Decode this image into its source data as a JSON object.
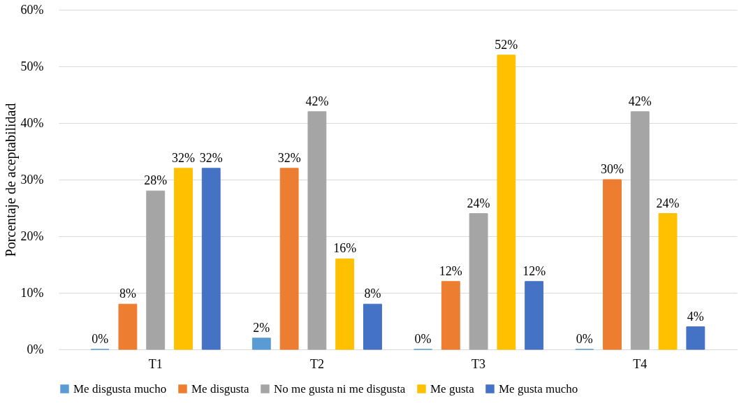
{
  "chart_data": {
    "type": "bar",
    "ylabel": "Porcentaje de aceptabilidad",
    "categories": [
      "T1",
      "T2",
      "T3",
      "T4"
    ],
    "series": [
      {
        "name": "Me disgusta mucho",
        "color": "#5b9bd5",
        "values": [
          0,
          2,
          0,
          0
        ],
        "value_labels": [
          "0%",
          "2%",
          "0%",
          "0%"
        ]
      },
      {
        "name": "Me disgusta",
        "color": "#ed7d31",
        "values": [
          8,
          32,
          12,
          30
        ],
        "value_labels": [
          "8%",
          "32%",
          "12%",
          "30%"
        ]
      },
      {
        "name": "No me gusta ni me disgusta",
        "color": "#a5a5a5",
        "values": [
          28,
          42,
          24,
          42
        ],
        "value_labels": [
          "28%",
          "42%",
          "24%",
          "42%"
        ]
      },
      {
        "name": "Me gusta",
        "color": "#ffc000",
        "values": [
          32,
          16,
          52,
          24
        ],
        "value_labels": [
          "32%",
          "16%",
          "52%",
          "24%"
        ]
      },
      {
        "name": "Me gusta mucho",
        "color": "#4472c4",
        "values": [
          32,
          8,
          12,
          4
        ],
        "value_labels": [
          "32%",
          "8%",
          "12%",
          "4%"
        ]
      }
    ],
    "ylim": [
      0,
      60
    ],
    "yticks": [
      {
        "value": 0,
        "label": "0%"
      },
      {
        "value": 10,
        "label": "10%"
      },
      {
        "value": 20,
        "label": "20%"
      },
      {
        "value": 30,
        "label": "30%"
      },
      {
        "value": 40,
        "label": "40%"
      },
      {
        "value": 50,
        "label": "50%"
      },
      {
        "value": 60,
        "label": "60%"
      }
    ],
    "grid": "y",
    "legend": "bottom"
  }
}
